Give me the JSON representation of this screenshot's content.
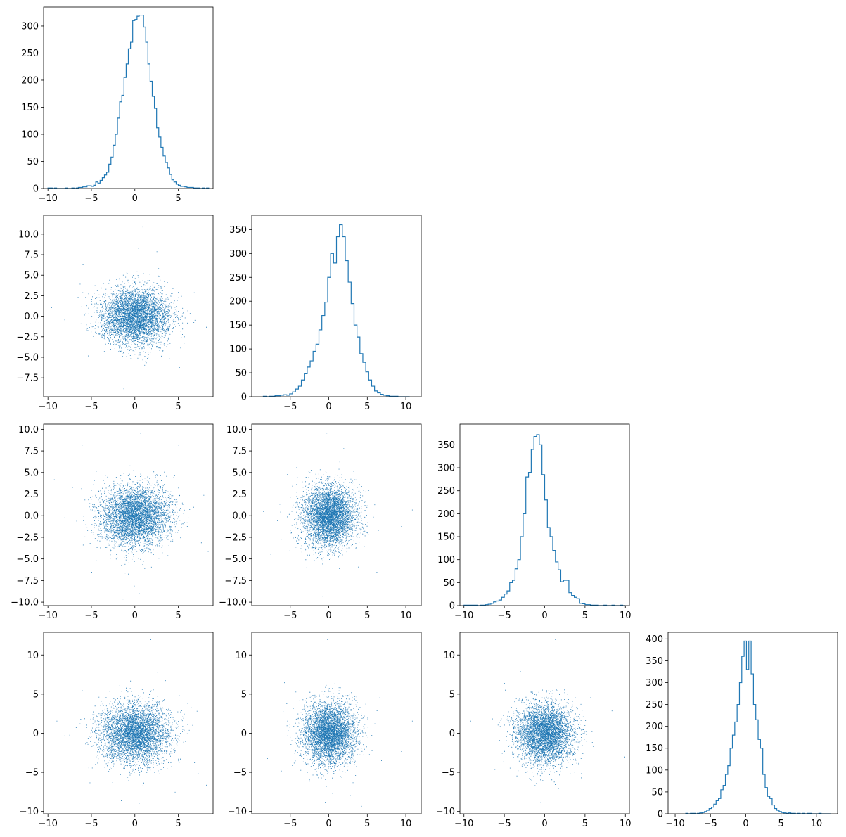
{
  "figure": {
    "kind": "corner-plot",
    "color": "#1f77b4",
    "dims": 4
  },
  "chart_data": [
    {
      "type": "histogram",
      "panel": [
        0,
        0
      ],
      "xlim": [
        -10.5,
        9
      ],
      "ylim": [
        0,
        335
      ],
      "xticks": [
        -10,
        -5,
        0,
        5
      ],
      "yticks": [
        0,
        50,
        100,
        150,
        200,
        250,
        300
      ],
      "bin_start": -10,
      "bin_end": 8.5,
      "counts": [
        1,
        1,
        0,
        1,
        0,
        0,
        0,
        0,
        1,
        0,
        0,
        1,
        0,
        1,
        2,
        2,
        3,
        3,
        5,
        5,
        4,
        6,
        12,
        10,
        15,
        20,
        25,
        30,
        45,
        58,
        80,
        100,
        130,
        160,
        172,
        205,
        230,
        258,
        270,
        310,
        312,
        318,
        320,
        320,
        298,
        270,
        230,
        198,
        170,
        148,
        112,
        95,
        76,
        60,
        48,
        38,
        26,
        16,
        12,
        8,
        6,
        4,
        4,
        3,
        2,
        2,
        2,
        1,
        1,
        1,
        0,
        1,
        0,
        1
      ]
    },
    {
      "type": "scatter",
      "panel": [
        1,
        0
      ],
      "xlim": [
        -10.5,
        9
      ],
      "ylim": [
        -9.8,
        12.3
      ],
      "xticks": [
        -10,
        -5,
        0,
        5
      ],
      "yticks": [
        -7.5,
        -5.0,
        -2.5,
        0.0,
        2.5,
        5.0,
        7.5,
        10.0
      ],
      "n": 5000,
      "center": [
        0,
        0
      ],
      "spread": [
        1.95,
        1.7
      ],
      "outliers": [
        [
          0.9,
          10.9
        ],
        [
          -9.6,
          1.1
        ],
        [
          -8.1,
          -0.4
        ],
        [
          0.4,
          8.3
        ],
        [
          -6,
          6.3
        ],
        [
          6.8,
          2.9
        ],
        [
          -1.3,
          -8.8
        ],
        [
          8.2,
          -1.3
        ],
        [
          5.1,
          -6.2
        ],
        [
          -5.4,
          -4.8
        ],
        [
          2.5,
          7.9
        ]
      ]
    },
    {
      "type": "histogram",
      "panel": [
        1,
        1
      ],
      "xlim": [
        -10,
        12
      ],
      "ylim": [
        0,
        380
      ],
      "xticks": [
        -5,
        0,
        5,
        10
      ],
      "yticks": [
        0,
        50,
        100,
        150,
        200,
        250,
        300,
        350
      ],
      "bin_start": -8.5,
      "bin_end": 10.5,
      "counts": [
        1,
        0,
        1,
        1,
        2,
        2,
        3,
        4,
        3,
        6,
        10,
        16,
        22,
        35,
        48,
        62,
        75,
        95,
        110,
        140,
        170,
        198,
        250,
        300,
        280,
        335,
        360,
        335,
        285,
        240,
        195,
        150,
        125,
        90,
        72,
        52,
        35,
        22,
        12,
        8,
        5,
        3,
        2,
        1,
        1,
        1,
        0,
        0,
        0,
        0
      ]
    },
    {
      "type": "scatter",
      "panel": [
        2,
        0
      ],
      "xlim": [
        -10.5,
        9
      ],
      "ylim": [
        -10.4,
        10.6
      ],
      "xticks": [
        -10,
        -5,
        0,
        5
      ],
      "yticks": [
        -10.0,
        -7.5,
        -5.0,
        -2.5,
        0.0,
        2.5,
        5.0,
        7.5,
        10.0
      ],
      "n": 5000,
      "center": [
        0,
        0
      ],
      "spread": [
        1.95,
        1.75
      ],
      "outliers": [
        [
          0.6,
          9.6
        ],
        [
          -6.1,
          8.2
        ],
        [
          5,
          8.2
        ],
        [
          -9.3,
          4.2
        ],
        [
          -8.1,
          -0.2
        ],
        [
          7.9,
          2.4
        ],
        [
          -1.4,
          -9.6
        ],
        [
          0.5,
          -9
        ],
        [
          8.4,
          -4.1
        ],
        [
          -5,
          -6.5
        ],
        [
          -0.1,
          -8.1
        ]
      ]
    },
    {
      "type": "scatter",
      "panel": [
        2,
        1
      ],
      "xlim": [
        -10,
        12
      ],
      "ylim": [
        -10.4,
        10.6
      ],
      "xticks": [
        -5,
        0,
        5,
        10
      ],
      "yticks": [
        -10.0,
        -7.5,
        -5.0,
        -2.5,
        0.0,
        2.5,
        5.0,
        7.5,
        10.0
      ],
      "n": 5000,
      "center": [
        0,
        0
      ],
      "spread": [
        1.7,
        1.75
      ],
      "outliers": [
        [
          -0.3,
          9.6
        ],
        [
          -4.2,
          5.6
        ],
        [
          10.8,
          0.7
        ],
        [
          -8.5,
          0.5
        ],
        [
          9.4,
          -1.2
        ],
        [
          -7.6,
          -4.4
        ],
        [
          -0.8,
          -9.3
        ],
        [
          6.2,
          -6.5
        ],
        [
          1.9,
          7.8
        ],
        [
          -4.3,
          -3.6
        ],
        [
          3.8,
          -5.9
        ]
      ]
    },
    {
      "type": "histogram",
      "panel": [
        2,
        2
      ],
      "xlim": [
        -10.5,
        10.5
      ],
      "ylim": [
        0,
        395
      ],
      "xticks": [
        -10,
        -5,
        0,
        5,
        10
      ],
      "yticks": [
        0,
        50,
        100,
        150,
        200,
        250,
        300,
        350
      ],
      "bin_start": -10,
      "bin_end": 10,
      "counts": [
        1,
        1,
        1,
        1,
        1,
        0,
        1,
        1,
        2,
        3,
        5,
        8,
        10,
        12,
        18,
        25,
        32,
        50,
        55,
        80,
        100,
        150,
        200,
        280,
        290,
        340,
        368,
        372,
        350,
        285,
        230,
        170,
        150,
        120,
        95,
        78,
        52,
        55,
        55,
        28,
        22,
        18,
        15,
        5,
        4,
        2,
        2,
        1,
        1,
        1,
        0,
        0,
        1,
        0,
        0,
        1,
        0,
        0,
        1,
        0
      ]
    },
    {
      "type": "scatter",
      "panel": [
        3,
        0
      ],
      "xlim": [
        -10.5,
        9
      ],
      "ylim": [
        -10.3,
        12.9
      ],
      "xticks": [
        -10,
        -5,
        0,
        5
      ],
      "yticks": [
        -10,
        -5,
        0,
        5,
        10
      ],
      "n": 5000,
      "center": [
        0,
        0
      ],
      "spread": [
        1.95,
        1.9
      ],
      "outliers": [
        [
          1.8,
          12
        ],
        [
          -9,
          1.6
        ],
        [
          -8.1,
          -0.3
        ],
        [
          7.5,
          2.1
        ],
        [
          -6.1,
          5.5
        ],
        [
          -1.6,
          -8.6
        ],
        [
          0.5,
          -8.9
        ],
        [
          8.2,
          -6.6
        ],
        [
          -5.2,
          -6.3
        ],
        [
          2.6,
          7.8
        ],
        [
          4.6,
          -7.5
        ]
      ]
    },
    {
      "type": "scatter",
      "panel": [
        3,
        1
      ],
      "xlim": [
        -10,
        12
      ],
      "ylim": [
        -10.3,
        12.9
      ],
      "xticks": [
        -5,
        0,
        5,
        10
      ],
      "yticks": [
        -10,
        -5,
        0,
        5,
        10
      ],
      "n": 5000,
      "center": [
        0,
        0
      ],
      "spread": [
        1.7,
        1.9
      ],
      "outliers": [
        [
          -0.2,
          12
        ],
        [
          10.8,
          1.6
        ],
        [
          -8.4,
          0.3
        ],
        [
          -5.8,
          6.5
        ],
        [
          9.4,
          -2.3
        ],
        [
          4.2,
          -9.3
        ],
        [
          -0.5,
          -8.8
        ],
        [
          -6.2,
          -4.8
        ],
        [
          2.2,
          7.5
        ],
        [
          6.6,
          4.6
        ],
        [
          -8,
          -3.2
        ]
      ]
    },
    {
      "type": "scatter",
      "panel": [
        3,
        2
      ],
      "xlim": [
        -10.5,
        10.5
      ],
      "ylim": [
        -10.3,
        12.9
      ],
      "xticks": [
        -10,
        -5,
        0,
        5,
        10
      ],
      "yticks": [
        -10,
        -5,
        0,
        5,
        10
      ],
      "n": 5000,
      "center": [
        0,
        0
      ],
      "spread": [
        1.75,
        1.9
      ],
      "outliers": [
        [
          1.3,
          12
        ],
        [
          -9.2,
          1.6
        ],
        [
          8.3,
          2.9
        ],
        [
          -5,
          6.4
        ],
        [
          -0.5,
          -8.8
        ],
        [
          9.9,
          -3
        ],
        [
          -6.2,
          -4.6
        ],
        [
          3.1,
          -6.8
        ],
        [
          -3,
          7.9
        ],
        [
          6.6,
          5.7
        ]
      ]
    },
    {
      "type": "histogram",
      "panel": [
        3,
        3
      ],
      "xlim": [
        -11,
        13
      ],
      "ylim": [
        0,
        415
      ],
      "xticks": [
        -10,
        -5,
        0,
        5,
        10
      ],
      "yticks": [
        0,
        50,
        100,
        150,
        200,
        250,
        300,
        350,
        400
      ],
      "bin_start": -8.5,
      "bin_end": 12,
      "counts": [
        1,
        0,
        1,
        1,
        0,
        1,
        2,
        3,
        5,
        8,
        12,
        15,
        22,
        30,
        35,
        55,
        65,
        90,
        110,
        150,
        180,
        210,
        250,
        300,
        360,
        395,
        330,
        395,
        320,
        250,
        215,
        170,
        150,
        90,
        60,
        40,
        35,
        20,
        12,
        8,
        5,
        3,
        2,
        1,
        2,
        1,
        1,
        0,
        1,
        0,
        1,
        0,
        1,
        1,
        0,
        0,
        0,
        1,
        0,
        0,
        0,
        0
      ]
    }
  ]
}
